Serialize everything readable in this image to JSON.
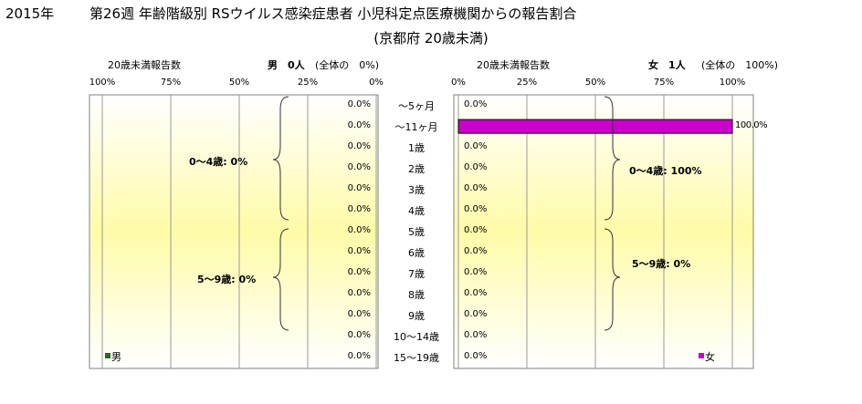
{
  "title": {
    "year": "2015年",
    "main": "第26週 年齢階級別 RSウイルス感染症患者 小児科定点医療機関からの報告割合",
    "sub": "(京都府 20歳未満)"
  },
  "left_panel": {
    "header_label": "20歳未満報告数",
    "sex_label": "男　0人",
    "share_label": "(全体の　0%)",
    "ticks": [
      "100%",
      "75%",
      "50%",
      "25%",
      "0%"
    ],
    "legend": "男",
    "groups": [
      "0～4歳: 0%",
      "5～9歳: 0%"
    ]
  },
  "right_panel": {
    "header_label": "20歳未満報告数",
    "sex_label": "女　1人",
    "share_label": "(全体の　100%)",
    "ticks": [
      "0%",
      "25%",
      "50%",
      "75%",
      "100%"
    ],
    "legend": "女",
    "groups": [
      "0～4歳: 100%",
      "5～9歳: 0%"
    ]
  },
  "colors": {
    "male": "#1f6b1f",
    "female": "#cc00cc",
    "background_center": "#fffba8",
    "background_edge": "#ffffff"
  },
  "chart_data": {
    "type": "bar",
    "orientation": "horizontal",
    "categories": [
      "～5ヶ月",
      "～11ヶ月",
      "1歳",
      "2歳",
      "3歳",
      "4歳",
      "5歳",
      "6歳",
      "7歳",
      "8歳",
      "9歳",
      "10～14歳",
      "15～19歳"
    ],
    "series": [
      {
        "name": "男",
        "values": [
          0,
          0,
          0,
          0,
          0,
          0,
          0,
          0,
          0,
          0,
          0,
          0,
          0
        ],
        "labels": [
          "0.0%",
          "0.0%",
          "0.0%",
          "0.0%",
          "0.0%",
          "0.0%",
          "0.0%",
          "0.0%",
          "0.0%",
          "0.0%",
          "0.0%",
          "0.0%",
          "0.0%"
        ]
      },
      {
        "name": "女",
        "values": [
          0,
          100,
          0,
          0,
          0,
          0,
          0,
          0,
          0,
          0,
          0,
          0,
          0
        ],
        "labels": [
          "0.0%",
          "100.0%",
          "0.0%",
          "0.0%",
          "0.0%",
          "0.0%",
          "0.0%",
          "0.0%",
          "0.0%",
          "0.0%",
          "0.0%",
          "0.0%",
          "0.0%"
        ]
      }
    ],
    "xlim": [
      0,
      100
    ]
  }
}
